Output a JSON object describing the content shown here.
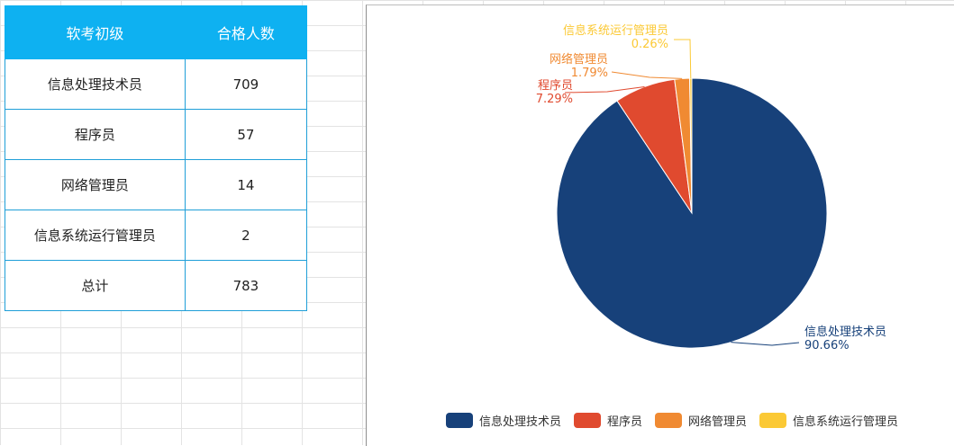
{
  "table": {
    "header": [
      "软考初级",
      "合格人数"
    ],
    "rows": [
      {
        "name": "信息处理技术员",
        "count": "709"
      },
      {
        "name": "程序员",
        "count": "57"
      },
      {
        "name": "网络管理员",
        "count": "14"
      },
      {
        "name": "信息系统运行管理员",
        "count": "2"
      },
      {
        "name": "总计",
        "count": "783"
      }
    ]
  },
  "chart_data": {
    "type": "pie",
    "categories": [
      "信息处理技术员",
      "程序员",
      "网络管理员",
      "信息系统运行管理员"
    ],
    "values": [
      709,
      57,
      14,
      2
    ],
    "percent_labels": [
      "90.66%",
      "7.29%",
      "1.79%",
      "0.26%"
    ],
    "colors": [
      "#17417a",
      "#e04a2f",
      "#f08a32",
      "#fbc935"
    ],
    "legend_position": "bottom-right"
  }
}
